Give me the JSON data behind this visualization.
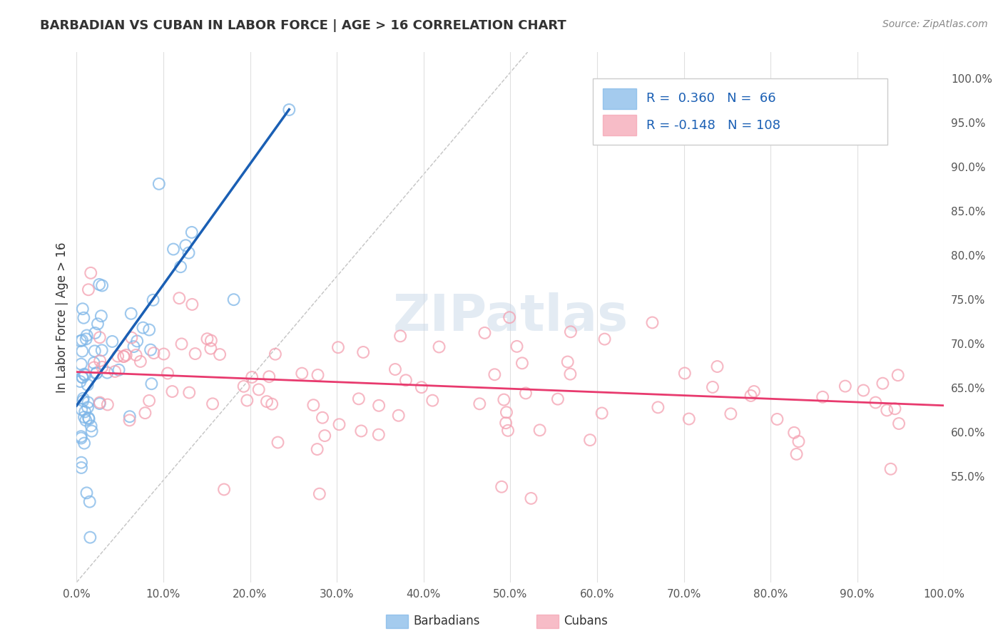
{
  "title": "BARBADIAN VS CUBAN IN LABOR FORCE | AGE > 16 CORRELATION CHART",
  "source": "Source: ZipAtlas.com",
  "ylabel": "In Labor Force | Age > 16",
  "xlim": [
    0,
    1
  ],
  "ylim": [
    0.43,
    1.03
  ],
  "xticks": [
    0.0,
    0.1,
    0.2,
    0.3,
    0.4,
    0.5,
    0.6,
    0.7,
    0.8,
    0.9,
    1.0
  ],
  "xticklabels": [
    "0.0%",
    "10.0%",
    "20.0%",
    "30.0%",
    "40.0%",
    "50.0%",
    "60.0%",
    "70.0%",
    "80.0%",
    "90.0%",
    "100.0%"
  ],
  "yticks_right": [
    0.55,
    0.6,
    0.65,
    0.7,
    0.75,
    0.8,
    0.85,
    0.9,
    0.95,
    1.0
  ],
  "yticklabels_right": [
    "55.0%",
    "60.0%",
    "65.0%",
    "70.0%",
    "75.0%",
    "80.0%",
    "85.0%",
    "90.0%",
    "95.0%",
    "100.0%"
  ],
  "blue_R": 0.36,
  "blue_N": 66,
  "pink_R": -0.148,
  "pink_N": 108,
  "legend_label_blue": "Barbadians",
  "legend_label_pink": "Cubans",
  "blue_color": "#7eb6e8",
  "pink_color": "#f4a0b0",
  "blue_line_color": "#1a5fb4",
  "pink_line_color": "#e83a6e",
  "watermark": "ZIPatlas",
  "watermark_color": "#c8d8e8",
  "title_color": "#333333",
  "axis_label_color": "#333333",
  "tick_color": "#555555",
  "grid_color": "#e0e0e0",
  "blue_trend_x0": 0.0,
  "blue_trend_x1": 0.245,
  "blue_trend_y0": 0.63,
  "blue_trend_y1": 0.965,
  "pink_trend_x0": 0.0,
  "pink_trend_x1": 1.0,
  "pink_trend_y0": 0.668,
  "pink_trend_y1": 0.63
}
